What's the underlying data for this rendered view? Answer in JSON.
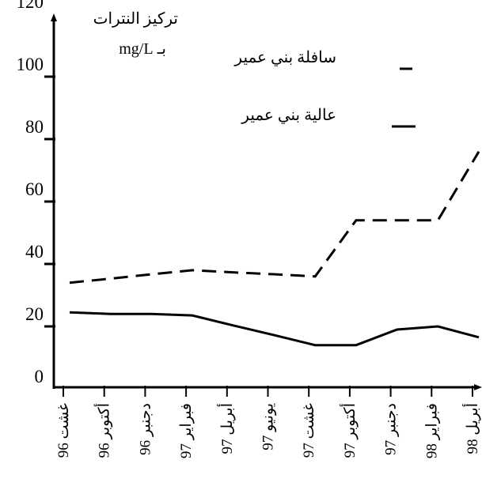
{
  "chart_data": {
    "type": "line",
    "y_label": [
      "تركيز النترات",
      "بـ mg/L"
    ],
    "categories": [
      "غشت 96",
      "أكتوبر 96",
      "دجنبر 96",
      "فبراير 97",
      "أبريل 97",
      "يونيو 97",
      "غشت 97",
      "أكتوبر 97",
      "دجنبر 97",
      "فبراير 98",
      "أبريل 98"
    ],
    "series": [
      {
        "name": "سافلة بني عمير",
        "color": "#000000",
        "dash": true,
        "values": [
          34,
          35.3,
          36.7,
          38,
          37.3,
          36.7,
          36,
          54,
          54,
          54,
          76
        ]
      },
      {
        "name": "عالية بني عمير",
        "color": "#000000",
        "dash": false,
        "values": [
          24.5,
          24,
          24,
          23.5,
          20.3,
          17.2,
          14,
          14,
          19,
          20,
          16.5
        ]
      }
    ],
    "ylim": [
      0,
      120
    ],
    "yticks": [
      0,
      20,
      40,
      60,
      80,
      100,
      120
    ],
    "grid": false
  }
}
